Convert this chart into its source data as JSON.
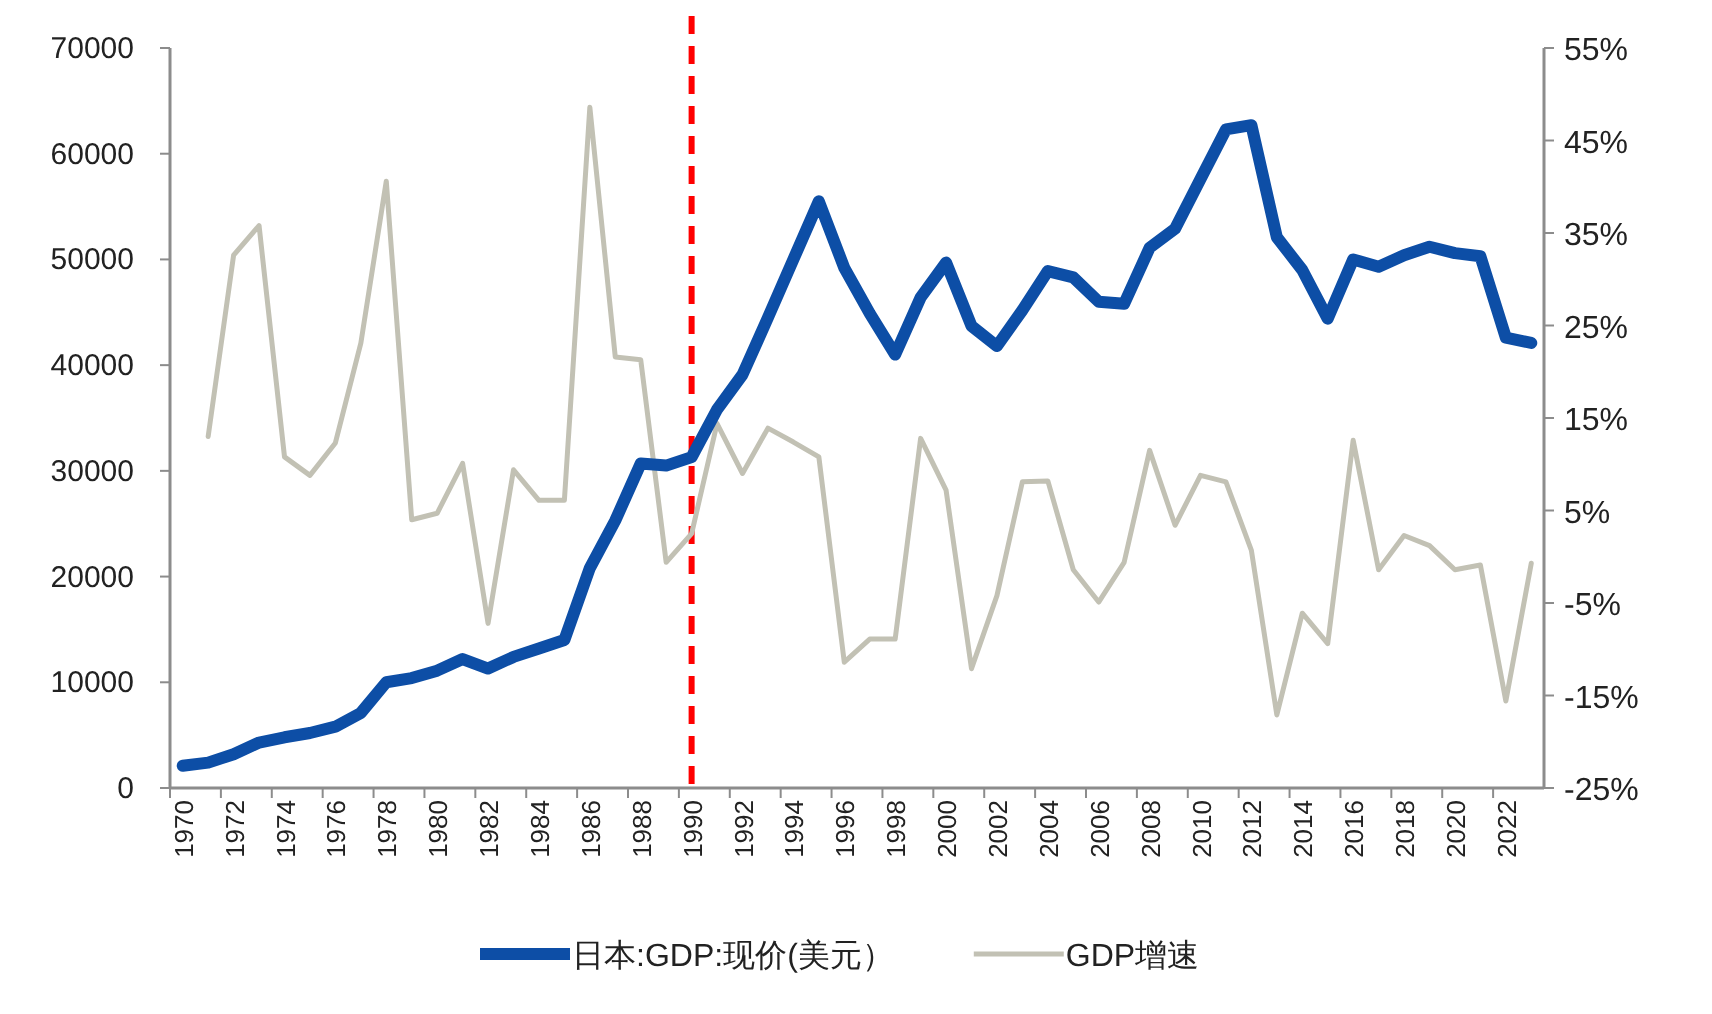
{
  "chart_data": {
    "type": "line",
    "categories": [
      "1970",
      null,
      "1972",
      null,
      "1974",
      null,
      "1976",
      null,
      "1978",
      null,
      "1980",
      null,
      "1982",
      null,
      "1984",
      null,
      "1986",
      null,
      "1988",
      null,
      "1990",
      null,
      "1992",
      null,
      "1994",
      null,
      "1996",
      null,
      "1998",
      null,
      "2000",
      null,
      "2002",
      null,
      "2004",
      null,
      "2006",
      null,
      "2008",
      null,
      "2010",
      null,
      "2012",
      null,
      "2014",
      null,
      "2016",
      null,
      "2018",
      null,
      "2020",
      null,
      "2022",
      null
    ],
    "series": [
      {
        "name": "日本:GDP:现价(美元）",
        "color": "#0d4ea6",
        "values": [
          2100,
          2400,
          3200,
          4300,
          4800,
          5200,
          5800,
          7100,
          10000,
          10400,
          11100,
          12200,
          11300,
          12400,
          13200,
          14000,
          20800,
          25300,
          30700,
          30500,
          31300,
          35800,
          39100,
          44500,
          50000,
          55500,
          49200,
          44900,
          41000,
          46400,
          49700,
          43700,
          41800,
          45200,
          48900,
          48300,
          46000,
          45800,
          51100,
          52900,
          57600,
          62300,
          62700,
          52100,
          49000,
          44400,
          50000,
          49300,
          50400,
          51200,
          50600,
          50300,
          42600,
          42100
        ]
      },
      {
        "name": "GDP增速",
        "color": "#c2c1b4",
        "axis": "y2",
        "values": [
          null,
          13.0,
          32.6,
          35.8,
          10.8,
          8.8,
          12.3,
          23.1,
          40.6,
          4.0,
          4.7,
          10.1,
          -7.2,
          9.4,
          6.1,
          6.1,
          48.6,
          21.6,
          21.3,
          -0.6,
          2.5,
          14.4,
          9.0,
          13.9,
          12.4,
          10.8,
          -11.4,
          -8.9,
          -8.9,
          12.8,
          7.2,
          -12.1,
          -4.2,
          8.1,
          8.2,
          -1.4,
          -4.9,
          -0.6,
          11.5,
          3.4,
          8.8,
          8.1,
          0.7,
          -17.1,
          -6.1,
          -9.4,
          12.6,
          -1.4,
          2.3,
          1.2,
          -1.4,
          -0.9,
          -15.6,
          -0.7
        ]
      }
    ],
    "ylim": [
      0,
      70000
    ],
    "yticks": [
      0,
      10000,
      20000,
      30000,
      40000,
      50000,
      60000,
      70000
    ],
    "y2lim": [
      -25,
      55
    ],
    "y2ticks": [
      {
        "value": -25,
        "label": "-25%"
      },
      {
        "value": -15,
        "label": "-15%"
      },
      {
        "value": -5,
        "label": "-5%"
      },
      {
        "value": 5,
        "label": "5%"
      },
      {
        "value": 15,
        "label": "15%"
      },
      {
        "value": 25,
        "label": "25%"
      },
      {
        "value": 35,
        "label": "35%"
      },
      {
        "value": 45,
        "label": "45%"
      },
      {
        "value": 55,
        "label": "55%"
      }
    ],
    "ref_lines": [
      {
        "axis": "x",
        "value": "1990",
        "color": "#ff0000",
        "line_style": "dashed"
      }
    ],
    "legend": "bottom",
    "grid": false
  }
}
